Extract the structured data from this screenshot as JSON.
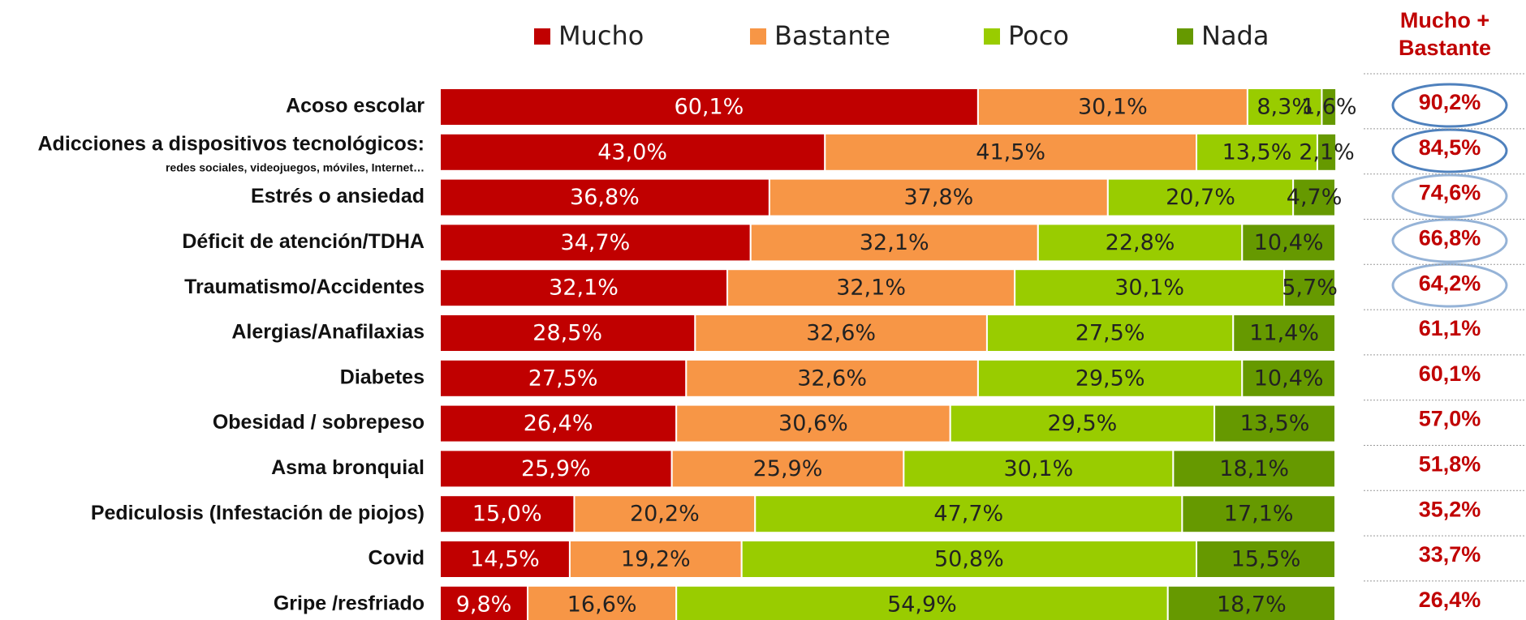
{
  "chart_data": {
    "type": "stacked_bar_horizontal",
    "categories": [
      "Acoso escolar",
      "Adicciones a dispositivos tecnológicos:",
      "Estrés o ansiedad",
      "Déficit de atención/TDHA",
      "Traumatismo/Accidentes",
      "Alergias/Anafilaxias",
      "Diabetes",
      "Obesidad / sobrepeso",
      "Asma bronquial",
      "Pediculosis (Infestación de piojos)",
      "Covid",
      "Gripe /resfriado"
    ],
    "category_notes": [
      null,
      "redes sociales, videojuegos, móviles, Internet…",
      null,
      null,
      null,
      null,
      null,
      null,
      null,
      null,
      null,
      null
    ],
    "xlim": [
      0,
      100
    ],
    "legend": "top",
    "series": [
      {
        "name": "Mucho",
        "color": "#c00000",
        "values": [
          60.1,
          43.0,
          36.8,
          34.7,
          32.1,
          28.5,
          27.5,
          26.4,
          25.9,
          15.0,
          14.5,
          9.8
        ],
        "value_labels": [
          "60,1%",
          "43,0%",
          "36,8%",
          "34,7%",
          "32,1%",
          "28,5%",
          "27,5%",
          "26,4%",
          "25,9%",
          "15,0%",
          "14,5%",
          "9,8%"
        ]
      },
      {
        "name": "Bastante",
        "color": "#f79646",
        "values": [
          30.1,
          41.5,
          37.8,
          32.1,
          32.1,
          32.6,
          32.6,
          30.6,
          25.9,
          20.2,
          19.2,
          16.6
        ],
        "value_labels": [
          "30,1%",
          "41,5%",
          "37,8%",
          "32,1%",
          "32,1%",
          "32,6%",
          "32,6%",
          "30,6%",
          "25,9%",
          "20,2%",
          "19,2%",
          "16,6%"
        ]
      },
      {
        "name": "Poco",
        "color": "#99cc00",
        "values": [
          8.3,
          13.5,
          20.7,
          22.8,
          30.1,
          27.5,
          29.5,
          29.5,
          30.1,
          47.7,
          50.8,
          54.9
        ],
        "value_labels": [
          "8,3%",
          "13,5%",
          "20,7%",
          "22,8%",
          "30,1%",
          "27,5%",
          "29,5%",
          "29,5%",
          "30,1%",
          "47,7%",
          "50,8%",
          "54,9%"
        ]
      },
      {
        "name": "Nada",
        "color": "#669900",
        "values": [
          1.6,
          2.1,
          4.7,
          10.4,
          5.7,
          11.4,
          10.4,
          13.5,
          18.1,
          17.1,
          15.5,
          18.7
        ],
        "value_labels": [
          "1,6%",
          "2,1%",
          "4,7%",
          "10,4%",
          "5,7%",
          "11,4%",
          "10,4%",
          "13,5%",
          "18,1%",
          "17,1%",
          "15,5%",
          "18,7%"
        ]
      }
    ],
    "totals": {
      "title": "Mucho + Bastante",
      "color": "#c00000",
      "values": [
        90.2,
        84.5,
        74.6,
        66.8,
        64.2,
        61.1,
        60.1,
        57.0,
        51.8,
        35.2,
        33.7,
        26.4
      ],
      "value_labels": [
        "90,2%",
        "84,5%",
        "74,6%",
        "66,8%",
        "64,2%",
        "61,1%",
        "60,1%",
        "57,0%",
        "51,8%",
        "35,2%",
        "33,7%",
        "26,4%"
      ]
    }
  }
}
